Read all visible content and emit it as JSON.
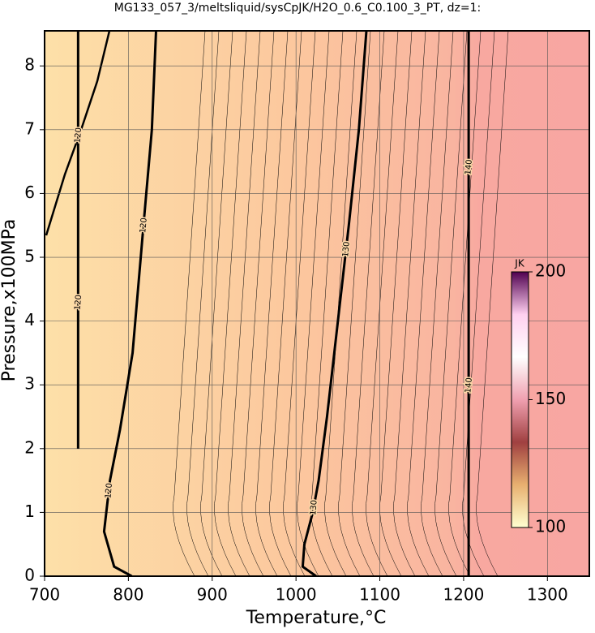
{
  "chart_data": {
    "type": "contour",
    "title": "MG133_057_3/meltsliquid/sysCpJK/H2O_0.6_C0.100_3_PT, dz=1:",
    "x_label": "Temperature,°C",
    "y_label": "Pressure,x100MPa",
    "xlim": [
      700,
      1350
    ],
    "ylim": [
      0,
      8.55
    ],
    "xticks": [
      700,
      800,
      900,
      1000,
      1100,
      1200,
      1300
    ],
    "yticks": [
      0,
      1,
      2,
      3,
      4,
      5,
      6,
      7,
      8
    ],
    "grid": true,
    "series": [
      {
        "name": "120",
        "color": "#000000",
        "x": [
          804,
          783,
          771,
          778,
          790,
          805,
          818,
          828,
          833
        ],
        "values": [
          0,
          0.15,
          0.7,
          1.5,
          2.3,
          3.5,
          5.5,
          7,
          8.55
        ]
      },
      {
        "name": "120",
        "color": "#000000",
        "x": [
          740,
          740
        ],
        "values": [
          2,
          8.55
        ]
      },
      {
        "name": "130",
        "color": "#000000",
        "x": [
          1024,
          1008,
          1010,
          1020,
          1027,
          1037,
          1050,
          1063,
          1075,
          1084
        ],
        "values": [
          0,
          0.15,
          0.5,
          1,
          1.5,
          2.5,
          4,
          5.5,
          7,
          8.55
        ]
      },
      {
        "name": "140",
        "color": "#000000",
        "x": [
          1206,
          1206
        ],
        "values": [
          0,
          8.55
        ]
      }
    ],
    "colorbar": {
      "label": "JK",
      "lim": [
        100,
        200
      ],
      "ticks": [
        100,
        150,
        200
      ],
      "colors": [
        "#ffffd0",
        "#e8b070",
        "#a04040",
        "#f0a0b0",
        "#ffffff",
        "#ffd0f0",
        "#500050"
      ]
    }
  }
}
